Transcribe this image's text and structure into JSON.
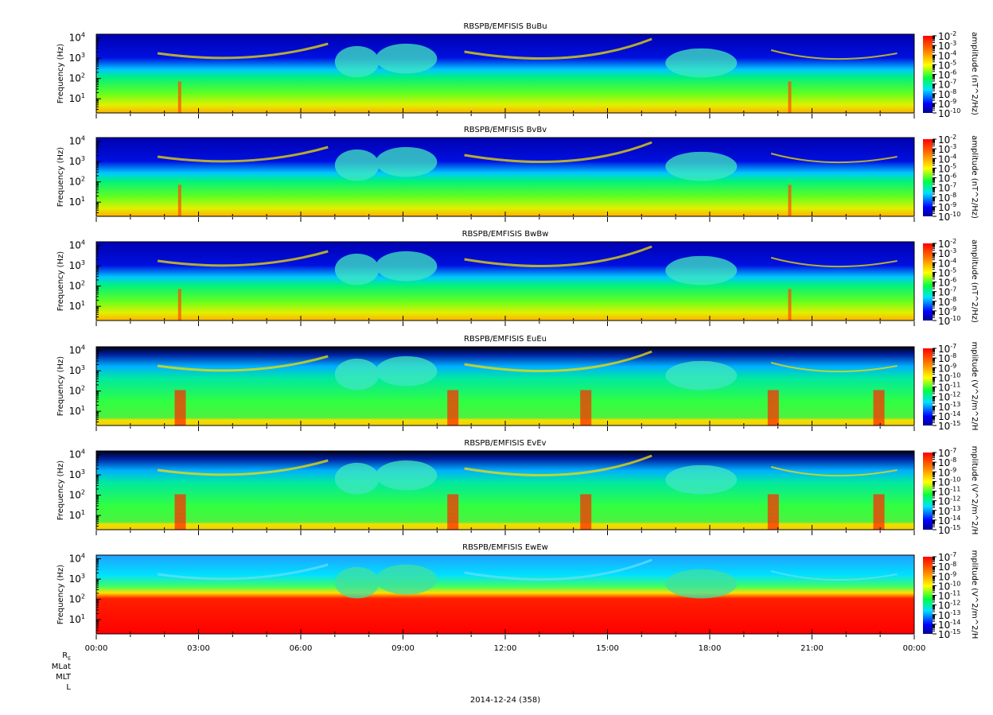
{
  "chart_data": {
    "type": "heatmap",
    "date_label": "2014-12-24 (358)",
    "x_ticks": [
      "00:00",
      "03:00",
      "06:00",
      "09:00",
      "12:00",
      "15:00",
      "18:00",
      "21:00",
      "00:00"
    ],
    "x_range_hours": [
      0,
      24
    ],
    "y_label": "Frequency (Hz)",
    "y_log_range": [
      0.3,
      4.18
    ],
    "y_tick_base": "10",
    "y_tick_exponents": [
      1,
      2,
      3,
      4
    ],
    "ephemeris_labels": [
      "R",
      "MLat",
      "MLT",
      "L"
    ],
    "ephemeris_sub": "E",
    "panels": [
      {
        "title": "RBSPB/EMFISIS  BuBu",
        "cbar_label": "amplitude  (nT^2/Hz)",
        "cbar_exponents": [
          -2,
          -3,
          -4,
          -5,
          -6,
          -7,
          -8,
          -9,
          -10
        ],
        "kind": "B"
      },
      {
        "title": "RBSPB/EMFISIS  BvBv",
        "cbar_label": "amplitude  (nT^2/Hz)",
        "cbar_exponents": [
          -2,
          -3,
          -4,
          -5,
          -6,
          -7,
          -8,
          -9,
          -10
        ],
        "kind": "B"
      },
      {
        "title": "RBSPB/EMFISIS  BwBw",
        "cbar_label": "amplitude  (nT^2/Hz)",
        "cbar_exponents": [
          -2,
          -3,
          -4,
          -5,
          -6,
          -7,
          -8,
          -9,
          -10
        ],
        "kind": "B"
      },
      {
        "title": "RBSPB/EMFISIS  EuEu",
        "cbar_label": "mplitude  (V^2/m^2/H",
        "cbar_exponents": [
          -7,
          -8,
          -9,
          -10,
          -11,
          -12,
          -13,
          -14,
          -15
        ],
        "kind": "E"
      },
      {
        "title": "RBSPB/EMFISIS  EvEv",
        "cbar_label": "mplitude  (V^2/m^2/H",
        "cbar_exponents": [
          -7,
          -8,
          -9,
          -10,
          -11,
          -12,
          -13,
          -14,
          -15
        ],
        "kind": "E"
      },
      {
        "title": "RBSPB/EMFISIS  EwEw",
        "cbar_label": "mplitude  (V^2/m^2/H",
        "cbar_exponents": [
          -7,
          -8,
          -9,
          -10,
          -11,
          -12,
          -13,
          -14,
          -15
        ],
        "kind": "W"
      }
    ]
  }
}
